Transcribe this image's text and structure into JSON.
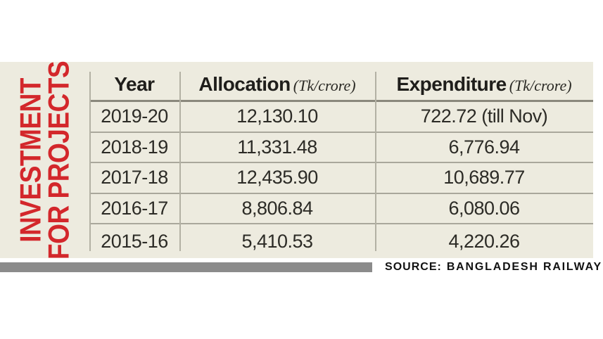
{
  "title": {
    "line1": "INVESTMENT",
    "line2": "FOR PROJECTS",
    "color": "#d3272b"
  },
  "table": {
    "columns": [
      {
        "label": "Year",
        "unit": ""
      },
      {
        "label": "Allocation",
        "unit": "(Tk/crore)"
      },
      {
        "label": "Expenditure",
        "unit": "(Tk/crore)"
      }
    ],
    "rows": [
      {
        "year": "2019-20",
        "allocation": "12,130.10",
        "expenditure": "722.72 (till Nov)"
      },
      {
        "year": "2018-19",
        "allocation": "11,331.48",
        "expenditure": "6,776.94"
      },
      {
        "year": "2017-18",
        "allocation": "12,435.90",
        "expenditure": "10,689.77"
      },
      {
        "year": "2016-17",
        "allocation": "8,806.84",
        "expenditure": "6,080.06"
      },
      {
        "year": "2015-16",
        "allocation": "5,410.53",
        "expenditure": "4,220.26"
      }
    ]
  },
  "source": {
    "label": "SOURCE:",
    "value": "BANGLADESH RAILWAY"
  },
  "colors": {
    "panel_bg": "#edebdf",
    "row_line": "#a9a79b",
    "header_line": "#8a887c",
    "source_bar": "#8b8b8b",
    "accent_red": "#d3272b",
    "text": "#2c2b26"
  },
  "chart_data": {
    "type": "table",
    "title": "INVESTMENT FOR PROJECTS",
    "columns": [
      "Year",
      "Allocation (Tk/crore)",
      "Expenditure (Tk/crore)"
    ],
    "rows": [
      [
        "2019-20",
        12130.1,
        "722.72 (till Nov)"
      ],
      [
        "2018-19",
        11331.48,
        6776.94
      ],
      [
        "2017-18",
        12435.9,
        10689.77
      ],
      [
        "2016-17",
        8806.84,
        6080.06
      ],
      [
        "2015-16",
        5410.53,
        4220.26
      ]
    ],
    "source": "SOURCE: BANGLADESH RAILWAY"
  }
}
